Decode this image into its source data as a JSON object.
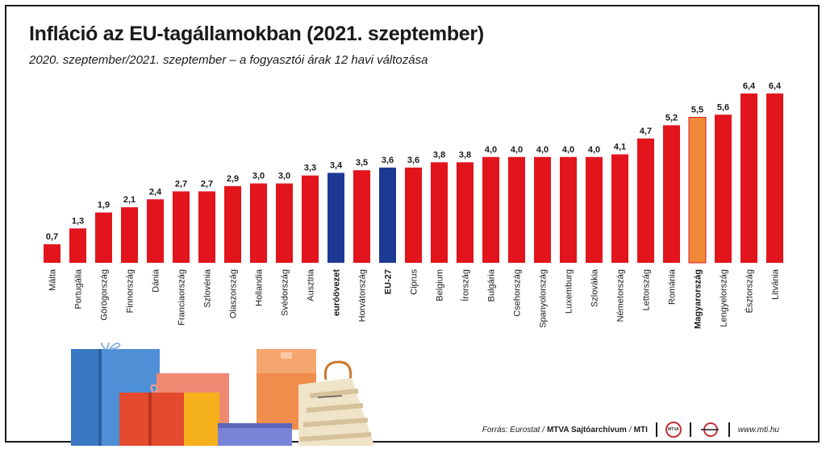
{
  "title": "Infláció az EU-tagállamokban (2021. szeptember)",
  "subtitle": "2020. szeptember/2021. szeptember – a fogyasztói árak 12 havi változása",
  "colors": {
    "bar_default": "#e2141c",
    "bar_euro": "#1c3a94",
    "bar_highlight": "#f08a3a",
    "text": "#1a1a1a"
  },
  "chart_data": {
    "type": "bar",
    "title": "Infláció az EU-tagállamokban (2021. szeptember)",
    "xlabel": "",
    "ylabel": "",
    "ylim": [
      0,
      6.4
    ],
    "grid": false,
    "categories": [
      "Málta",
      "Portugália",
      "Görögország",
      "Finnország",
      "Dánia",
      "Franciaország",
      "Szlovénia",
      "Olaszország",
      "Hollandia",
      "Svédország",
      "Ausztria",
      "euróövezet",
      "Horvátország",
      "EU-27",
      "Ciprus",
      "Belgium",
      "Írország",
      "Bulgária",
      "Csehország",
      "Spanyolország",
      "Luxemburg",
      "Szlovákia",
      "Németország",
      "Lettország",
      "Románia",
      "Magyarország",
      "Lengyelország",
      "Észtország",
      "Litvánia"
    ],
    "values": [
      0.7,
      1.3,
      1.9,
      2.1,
      2.4,
      2.7,
      2.7,
      2.9,
      3.0,
      3.0,
      3.3,
      3.4,
      3.5,
      3.6,
      3.6,
      3.8,
      3.8,
      4.0,
      4.0,
      4.0,
      4.0,
      4.0,
      4.1,
      4.7,
      5.2,
      5.5,
      5.6,
      6.4,
      6.4
    ],
    "value_labels": [
      "0,7",
      "1,3",
      "1,9",
      "2,1",
      "2,4",
      "2,7",
      "2,7",
      "2,9",
      "3,0",
      "3,0",
      "3,3",
      "3,4",
      "3,5",
      "3,6",
      "3,6",
      "3,8",
      "3,8",
      "4,0",
      "4,0",
      "4,0",
      "4,0",
      "4,0",
      "4,1",
      "4,7",
      "5,2",
      "5,5",
      "5,6",
      "6,4",
      "6,4"
    ],
    "highlight_categories": [
      "euróövezet",
      "EU-27"
    ],
    "emphasis_category": "Magyarország"
  },
  "footer": {
    "source_prefix": "Forrás: Eurostat /",
    "source_strong": "MTVA Sajtóarchívum",
    "separator": "/",
    "agency": "MTI",
    "logo_mtva_text": "MTVA",
    "url": "www.mti.hu"
  }
}
